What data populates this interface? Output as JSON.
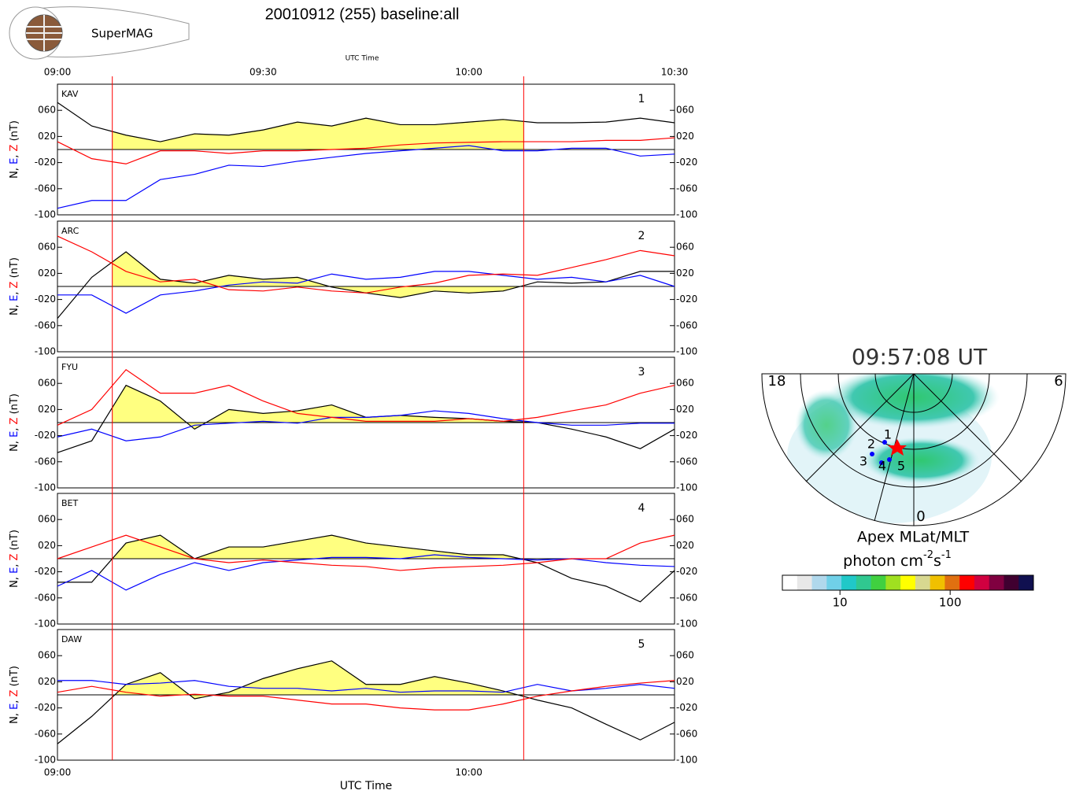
{
  "header": {
    "title": "20010912 (255) baseline:all",
    "logo": "SuperMAG"
  },
  "xaxis": {
    "xlim": [
      "09:00",
      "10:30"
    ],
    "top_ticks": [
      "09:00",
      "09:30",
      "10:00",
      "10:30"
    ],
    "bottom_ticks": [
      "09:00",
      "10:00"
    ],
    "label": "UTC Time",
    "markers": [
      "09:08",
      "10:08"
    ],
    "marker_color": "#ff0000"
  },
  "chart_data": [
    {
      "type": "line",
      "station": "KAV",
      "panel": "1",
      "fill_series": 0,
      "fill_color": "#ffff80",
      "ylabel": [
        {
          "text": "N, ",
          "color": "#000000"
        },
        {
          "text": "E",
          "color": "#0000ff"
        },
        {
          "text": ", ",
          "color": "#000000"
        },
        {
          "text": "Z",
          "color": "#ff0000"
        },
        {
          "text": " (nT)",
          "color": "#000000"
        }
      ],
      "x": [
        "09:00",
        "09:05",
        "09:10",
        "09:15",
        "09:20",
        "09:25",
        "09:30",
        "09:35",
        "09:40",
        "09:45",
        "09:50",
        "09:55",
        "10:00",
        "10:05",
        "10:10",
        "10:15",
        "10:20",
        "10:25",
        "10:30"
      ],
      "series": [
        {
          "color": "#000000",
          "values": [
            72,
            36,
            22,
            12,
            24,
            22,
            30,
            42,
            36,
            48,
            38,
            38,
            42,
            46,
            41,
            41,
            42,
            48,
            41
          ]
        },
        {
          "color": "#0000ff",
          "values": [
            -90,
            -78,
            -78,
            -46,
            -38,
            -24,
            -26,
            -18,
            -12,
            -6,
            -2,
            2,
            6,
            -2,
            -2,
            2,
            2,
            -10,
            -7
          ]
        },
        {
          "color": "#ff0000",
          "values": [
            12,
            -14,
            -22,
            -2,
            -2,
            -6,
            -2,
            -2,
            0,
            2,
            7,
            10,
            11,
            12,
            12,
            12,
            14,
            14,
            18
          ]
        }
      ],
      "ylim": [
        -100,
        100
      ],
      "yticks": [
        {
          "value": 60,
          "label": "060"
        },
        {
          "value": 20,
          "label": "020"
        },
        {
          "value": -20,
          "label": "-020"
        },
        {
          "value": -60,
          "label": "-060"
        },
        {
          "value": -100,
          "label": "-100"
        }
      ]
    },
    {
      "type": "line",
      "station": "ARC",
      "panel": "2",
      "fill_series": 0,
      "fill_color": "#ffff80",
      "ylabel": [
        {
          "text": "N, ",
          "color": "#000000"
        },
        {
          "text": "E",
          "color": "#0000ff"
        },
        {
          "text": ", ",
          "color": "#000000"
        },
        {
          "text": "Z",
          "color": "#ff0000"
        },
        {
          "text": " (nT)",
          "color": "#000000"
        }
      ],
      "x": [
        "09:00",
        "09:05",
        "09:10",
        "09:15",
        "09:20",
        "09:25",
        "09:30",
        "09:35",
        "09:40",
        "09:45",
        "09:50",
        "09:55",
        "10:00",
        "10:05",
        "10:10",
        "10:15",
        "10:20",
        "10:25",
        "10:30"
      ],
      "series": [
        {
          "color": "#000000",
          "values": [
            -49,
            14,
            53,
            11,
            5,
            17,
            11,
            14,
            -1,
            -10,
            -17,
            -7,
            -10,
            -7,
            7,
            5,
            7,
            23,
            23
          ]
        },
        {
          "color": "#0000ff",
          "values": [
            -13,
            -13,
            -41,
            -13,
            -7,
            2,
            7,
            5,
            19,
            11,
            14,
            23,
            23,
            17,
            11,
            14,
            7,
            17,
            0
          ]
        },
        {
          "color": "#ff0000",
          "values": [
            77,
            53,
            23,
            7,
            11,
            -5,
            -7,
            -1,
            -7,
            -10,
            -1,
            5,
            17,
            19,
            17,
            29,
            41,
            55,
            47
          ]
        }
      ],
      "ylim": [
        -100,
        100
      ],
      "yticks": [
        {
          "value": 60,
          "label": "060"
        },
        {
          "value": 20,
          "label": "020"
        },
        {
          "value": -20,
          "label": "-020"
        },
        {
          "value": -60,
          "label": "-060"
        },
        {
          "value": -100,
          "label": "-100"
        }
      ]
    },
    {
      "type": "line",
      "station": "FYU",
      "panel": "3",
      "fill_series": 0,
      "fill_color": "#ffff80",
      "ylabel": [
        {
          "text": "N, ",
          "color": "#000000"
        },
        {
          "text": "E",
          "color": "#0000ff"
        },
        {
          "text": ", ",
          "color": "#000000"
        },
        {
          "text": "Z",
          "color": "#ff0000"
        },
        {
          "text": " (nT)",
          "color": "#000000"
        }
      ],
      "x": [
        "09:00",
        "09:05",
        "09:10",
        "09:15",
        "09:20",
        "09:25",
        "09:30",
        "09:35",
        "09:40",
        "09:45",
        "09:50",
        "09:55",
        "10:00",
        "10:05",
        "10:10",
        "10:15",
        "10:20",
        "10:25",
        "10:30"
      ],
      "series": [
        {
          "color": "#000000",
          "values": [
            -46,
            -28,
            57,
            33,
            -10,
            20,
            14,
            18,
            27,
            8,
            11,
            8,
            6,
            2,
            0,
            -10,
            -22,
            -40,
            -10
          ]
        },
        {
          "color": "#0000ff",
          "values": [
            -22,
            -10,
            -28,
            -22,
            -4,
            -1,
            2,
            -1,
            8,
            8,
            11,
            18,
            14,
            6,
            0,
            -4,
            -4,
            -1,
            -1
          ]
        },
        {
          "color": "#ff0000",
          "values": [
            -4,
            20,
            81,
            45,
            45,
            57,
            33,
            14,
            8,
            2,
            2,
            2,
            6,
            2,
            8,
            18,
            27,
            45,
            57
          ]
        }
      ],
      "ylim": [
        -100,
        100
      ],
      "yticks": [
        {
          "value": 60,
          "label": "060"
        },
        {
          "value": 20,
          "label": "020"
        },
        {
          "value": -20,
          "label": "-020"
        },
        {
          "value": -60,
          "label": "-060"
        },
        {
          "value": -100,
          "label": "-100"
        }
      ]
    },
    {
      "type": "line",
      "station": "BET",
      "panel": "4",
      "fill_series": 0,
      "fill_color": "#ffff80",
      "ylabel": [
        {
          "text": "N, ",
          "color": "#000000"
        },
        {
          "text": "E",
          "color": "#0000ff"
        },
        {
          "text": ", ",
          "color": "#000000"
        },
        {
          "text": "Z",
          "color": "#ff0000"
        },
        {
          "text": " (nT)",
          "color": "#000000"
        }
      ],
      "x": [
        "09:00",
        "09:05",
        "09:10",
        "09:15",
        "09:20",
        "09:25",
        "09:30",
        "09:35",
        "09:40",
        "09:45",
        "09:50",
        "09:55",
        "10:00",
        "10:05",
        "10:10",
        "10:15",
        "10:20",
        "10:25",
        "10:30"
      ],
      "series": [
        {
          "color": "#000000",
          "values": [
            -36,
            -36,
            24,
            36,
            0,
            18,
            18,
            27,
            36,
            24,
            18,
            12,
            6,
            6,
            -6,
            -30,
            -42,
            -66,
            -18
          ]
        },
        {
          "color": "#0000ff",
          "values": [
            -42,
            -18,
            -48,
            -24,
            -6,
            -18,
            -6,
            -2,
            2,
            2,
            0,
            6,
            2,
            0,
            -2,
            0,
            -6,
            -10,
            -12
          ]
        },
        {
          "color": "#ff0000",
          "values": [
            0,
            18,
            36,
            18,
            0,
            -6,
            -2,
            -6,
            -10,
            -12,
            -18,
            -14,
            -12,
            -10,
            -6,
            0,
            0,
            24,
            36
          ]
        }
      ],
      "ylim": [
        -100,
        100
      ],
      "yticks": [
        {
          "value": 60,
          "label": "060"
        },
        {
          "value": 20,
          "label": "020"
        },
        {
          "value": -20,
          "label": "-020"
        },
        {
          "value": -60,
          "label": "-060"
        },
        {
          "value": -100,
          "label": "-100"
        }
      ]
    },
    {
      "type": "line",
      "station": "DAW",
      "panel": "5",
      "fill_series": 0,
      "fill_color": "#ffff80",
      "ylabel": [
        {
          "text": "N, ",
          "color": "#000000"
        },
        {
          "text": "E",
          "color": "#0000ff"
        },
        {
          "text": ", ",
          "color": "#000000"
        },
        {
          "text": "Z",
          "color": "#ff0000"
        },
        {
          "text": " (nT)",
          "color": "#000000"
        }
      ],
      "x": [
        "09:00",
        "09:05",
        "09:10",
        "09:15",
        "09:20",
        "09:25",
        "09:30",
        "09:35",
        "09:40",
        "09:45",
        "09:50",
        "09:55",
        "10:00",
        "10:05",
        "10:10",
        "10:15",
        "10:20",
        "10:25",
        "10:30"
      ],
      "series": [
        {
          "color": "#000000",
          "values": [
            -75,
            -33,
            16,
            34,
            -6,
            4,
            25,
            40,
            52,
            16,
            16,
            28,
            18,
            6,
            -8,
            -20,
            -45,
            -69,
            -42
          ]
        },
        {
          "color": "#0000ff",
          "values": [
            22,
            22,
            16,
            18,
            22,
            13,
            10,
            10,
            6,
            10,
            4,
            6,
            6,
            4,
            16,
            6,
            10,
            16,
            10
          ]
        },
        {
          "color": "#ff0000",
          "values": [
            4,
            13,
            4,
            -2,
            1,
            -2,
            -2,
            -8,
            -14,
            -14,
            -20,
            -23,
            -23,
            -14,
            -2,
            6,
            13,
            18,
            22
          ]
        }
      ],
      "ylim": [
        -100,
        100
      ],
      "yticks": [
        {
          "value": 60,
          "label": "060"
        },
        {
          "value": 20,
          "label": "020"
        },
        {
          "value": -20,
          "label": "-020"
        },
        {
          "value": -60,
          "label": "-060"
        },
        {
          "value": -100,
          "label": "-100"
        }
      ]
    }
  ],
  "aurora": {
    "time": "09:57:08 UT",
    "mlt_labels": [
      "18",
      "6",
      "0"
    ],
    "coords": "Apex MLat/MLT",
    "unit_parts": [
      "photon cm",
      "-2",
      "s",
      "-1"
    ],
    "stations": [
      "1",
      "2",
      "3",
      "4",
      "5"
    ],
    "colorbar": {
      "log": true,
      "lim": [
        3,
        570
      ],
      "ticks": [
        10,
        100
      ],
      "colors": [
        "#ffffff",
        "#e8e8e8",
        "#b0d8ec",
        "#70d0e8",
        "#20c8c8",
        "#30c890",
        "#40d040",
        "#a0e020",
        "#ffff00",
        "#d8d890",
        "#f0c000",
        "#e07010",
        "#ff0000",
        "#d00040",
        "#800040",
        "#400030",
        "#101050"
      ]
    }
  }
}
